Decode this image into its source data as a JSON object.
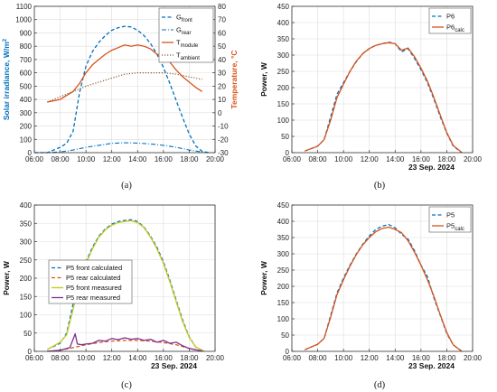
{
  "colors": {
    "blue": "#0072BD",
    "orange": "#D95319",
    "green": "#6b8e23",
    "yellow": "#c9c928",
    "purple": "#7E2F8E",
    "axis_orange": "#D95319"
  },
  "chart_data": [
    {
      "type": "line",
      "caption": "(a)",
      "ylabel": "Solar irradiance, W/m",
      "ylabel_sup": "2",
      "ylabel2": "Temperature, °C",
      "xlabel": "",
      "date_label": "",
      "xlim": [
        "06:00",
        "20:00"
      ],
      "ylim": [
        0,
        1100
      ],
      "ylim2": [
        -30,
        80
      ],
      "xticks": [
        "06:00",
        "08:00",
        "10:00",
        "12:00",
        "14:00",
        "16:00",
        "18:00",
        "20:00"
      ],
      "yticks": [
        0,
        100,
        200,
        300,
        400,
        500,
        600,
        700,
        800,
        900,
        1000,
        1100
      ],
      "yticks2": [
        -30,
        -20,
        -10,
        0,
        10,
        20,
        30,
        40,
        50,
        60,
        70,
        80
      ],
      "grid": true,
      "legend_position": "top-right",
      "series": [
        {
          "name": "G",
          "sub": "front",
          "axis": "left",
          "color": "#0072BD",
          "style": "dash",
          "width": 1.3,
          "x": [
            "06:00",
            "07:00",
            "08:00",
            "08:30",
            "09:00",
            "09:30",
            "10:00",
            "10:30",
            "11:00",
            "11:30",
            "12:00",
            "12:30",
            "13:00",
            "13:30",
            "14:00",
            "14:30",
            "15:00",
            "15:30",
            "16:00",
            "16:30",
            "17:00",
            "17:30",
            "18:00",
            "18:30",
            "19:00",
            "19:30"
          ],
          "y": [
            0,
            0,
            40,
            70,
            160,
            450,
            650,
            760,
            830,
            880,
            920,
            940,
            950,
            945,
            920,
            880,
            820,
            740,
            640,
            520,
            390,
            260,
            140,
            50,
            10,
            0
          ]
        },
        {
          "name": "G",
          "sub": "rear",
          "axis": "left",
          "color": "#0072BD",
          "style": "dashdot",
          "width": 1.1,
          "x": [
            "06:00",
            "07:00",
            "08:00",
            "09:00",
            "10:00",
            "11:00",
            "12:00",
            "13:00",
            "14:00",
            "15:00",
            "16:00",
            "17:00",
            "18:00",
            "19:00",
            "19:30"
          ],
          "y": [
            0,
            0,
            5,
            20,
            40,
            55,
            70,
            75,
            72,
            65,
            55,
            40,
            20,
            5,
            0
          ]
        },
        {
          "name": "T",
          "sub": "module",
          "axis": "right",
          "color": "#D95319",
          "style": "solid",
          "width": 1.3,
          "x": [
            "07:00",
            "07:30",
            "08:00",
            "08:30",
            "09:00",
            "09:30",
            "10:00",
            "10:30",
            "11:00",
            "11:30",
            "12:00",
            "12:30",
            "13:00",
            "13:30",
            "14:00",
            "14:30",
            "15:00",
            "15:30",
            "16:00",
            "16:30",
            "17:00",
            "17:30",
            "18:00",
            "18:30",
            "19:00"
          ],
          "y": [
            8,
            9,
            10,
            13,
            16,
            22,
            30,
            36,
            40,
            44,
            47,
            49,
            51,
            50,
            51,
            50,
            48,
            44,
            42,
            38,
            32,
            27,
            23,
            19,
            16
          ]
        },
        {
          "name": "T",
          "sub": "ambient",
          "axis": "right",
          "color": "#8B5A2B",
          "style": "dot",
          "width": 1.2,
          "x": [
            "07:00",
            "08:00",
            "09:00",
            "10:00",
            "11:00",
            "12:00",
            "13:00",
            "14:00",
            "15:00",
            "16:00",
            "17:00",
            "18:00",
            "19:00"
          ],
          "y": [
            8,
            12,
            16,
            20,
            23,
            26,
            29,
            30,
            30,
            30,
            29,
            27,
            25
          ]
        }
      ]
    },
    {
      "type": "line",
      "caption": "(b)",
      "ylabel": "Power, W",
      "date_label": "23 Sep. 2024",
      "xlim": [
        "06:00",
        "20:00"
      ],
      "ylim": [
        0,
        450
      ],
      "xticks": [
        "06:00",
        "08:00",
        "10:00",
        "12:00",
        "14:00",
        "16:00",
        "18:00",
        "20:00"
      ],
      "yticks": [
        0,
        50,
        100,
        150,
        200,
        250,
        300,
        350,
        400,
        450
      ],
      "grid": true,
      "legend_position": "top-right",
      "series": [
        {
          "name": "P6",
          "sub": "",
          "color": "#0072BD",
          "style": "dash",
          "width": 1.3,
          "x": [
            "07:00",
            "08:00",
            "08:30",
            "09:00",
            "09:30",
            "10:00",
            "10:30",
            "11:00",
            "11:30",
            "12:00",
            "12:30",
            "13:00",
            "13:30",
            "14:00",
            "14:30",
            "15:00",
            "15:30",
            "16:00",
            "16:30",
            "17:00",
            "17:30",
            "18:00",
            "18:30",
            "19:00",
            "19:10"
          ],
          "y": [
            5,
            20,
            40,
            110,
            180,
            215,
            250,
            280,
            305,
            320,
            330,
            335,
            340,
            335,
            310,
            320,
            290,
            255,
            215,
            165,
            110,
            60,
            20,
            5,
            0
          ]
        },
        {
          "name": "P6",
          "sub": "calc",
          "color": "#D95319",
          "style": "solid",
          "width": 1.3,
          "x": [
            "07:00",
            "08:00",
            "08:30",
            "09:00",
            "09:30",
            "10:00",
            "10:30",
            "11:00",
            "11:30",
            "12:00",
            "12:30",
            "13:00",
            "13:30",
            "14:00",
            "14:30",
            "15:00",
            "15:30",
            "16:00",
            "16:30",
            "17:00",
            "17:30",
            "18:00",
            "18:30",
            "19:00",
            "19:10"
          ],
          "y": [
            5,
            20,
            40,
            100,
            170,
            210,
            250,
            282,
            305,
            320,
            330,
            335,
            338,
            335,
            315,
            322,
            295,
            260,
            220,
            170,
            115,
            62,
            22,
            6,
            0
          ]
        }
      ]
    },
    {
      "type": "line",
      "caption": "(c)",
      "ylabel": "Power, W",
      "date_label": "23 Sep. 2024",
      "xlim": [
        "06:00",
        "20:00"
      ],
      "ylim": [
        0,
        400
      ],
      "xticks": [
        "06:00",
        "08:00",
        "10:00",
        "12:00",
        "14:00",
        "16:00",
        "18:00",
        "20:00"
      ],
      "yticks": [
        0,
        50,
        100,
        150,
        200,
        250,
        300,
        350,
        400
      ],
      "grid": true,
      "legend_position": "center-left",
      "series": [
        {
          "name": "P5 front calculated",
          "sub": "",
          "color": "#0072BD",
          "style": "dash",
          "width": 1.2,
          "x": [
            "07:00",
            "08:00",
            "08:30",
            "09:00",
            "09:30",
            "10:00",
            "10:30",
            "11:00",
            "11:30",
            "12:00",
            "12:30",
            "13:00",
            "13:30",
            "14:00",
            "14:30",
            "15:00",
            "15:30",
            "16:00",
            "16:30",
            "17:00",
            "17:30",
            "18:00",
            "18:30",
            "19:00",
            "19:10"
          ],
          "y": [
            5,
            22,
            50,
            130,
            200,
            245,
            285,
            315,
            335,
            348,
            355,
            358,
            360,
            355,
            340,
            315,
            285,
            245,
            195,
            140,
            85,
            40,
            12,
            3,
            0
          ]
        },
        {
          "name": "P5 rear calculated",
          "sub": "",
          "color": "#D95319",
          "style": "dash",
          "width": 1.2,
          "x": [
            "07:00",
            "08:00",
            "09:00",
            "10:00",
            "11:00",
            "12:00",
            "13:00",
            "14:00",
            "15:00",
            "16:00",
            "17:00",
            "18:00",
            "19:00"
          ],
          "y": [
            0,
            3,
            10,
            18,
            24,
            28,
            30,
            30,
            28,
            24,
            18,
            8,
            1
          ]
        },
        {
          "name": "P5 front measured",
          "sub": "",
          "color": "#c9c928",
          "style": "solid",
          "width": 1.4,
          "x": [
            "07:00",
            "08:00",
            "08:30",
            "09:00",
            "09:30",
            "10:00",
            "10:30",
            "11:00",
            "11:30",
            "12:00",
            "12:30",
            "13:00",
            "13:30",
            "14:00",
            "14:30",
            "15:00",
            "15:30",
            "16:00",
            "16:30",
            "17:00",
            "17:30",
            "18:00",
            "18:30",
            "19:00",
            "19:10"
          ],
          "y": [
            5,
            25,
            45,
            115,
            190,
            240,
            280,
            312,
            332,
            345,
            352,
            355,
            357,
            352,
            338,
            312,
            280,
            240,
            190,
            135,
            80,
            38,
            12,
            3,
            0
          ]
        },
        {
          "name": "P5 rear measured",
          "sub": "",
          "color": "#7E2F8E",
          "style": "solid",
          "width": 1.3,
          "x": [
            "07:00",
            "08:00",
            "08:45",
            "09:10",
            "09:20",
            "09:40",
            "10:00",
            "10:30",
            "11:00",
            "11:30",
            "12:00",
            "12:30",
            "13:00",
            "13:30",
            "14:00",
            "14:30",
            "15:00",
            "15:30",
            "16:00",
            "16:30",
            "17:00",
            "17:30",
            "18:00",
            "19:00"
          ],
          "y": [
            0,
            3,
            10,
            48,
            20,
            18,
            20,
            22,
            30,
            28,
            35,
            32,
            37,
            33,
            35,
            30,
            33,
            25,
            30,
            22,
            25,
            15,
            8,
            1
          ]
        }
      ]
    },
    {
      "type": "line",
      "caption": "(d)",
      "ylabel": "Power, W",
      "date_label": "23 Sep. 2024",
      "xlim": [
        "06:00",
        "20:00"
      ],
      "ylim": [
        0,
        450
      ],
      "xticks": [
        "06:00",
        "08:00",
        "10:00",
        "12:00",
        "14:00",
        "16:00",
        "18:00",
        "20:00"
      ],
      "yticks": [
        0,
        50,
        100,
        150,
        200,
        250,
        300,
        350,
        400,
        450
      ],
      "grid": true,
      "legend_position": "top-right",
      "series": [
        {
          "name": "P5",
          "sub": "",
          "color": "#0072BD",
          "style": "dash",
          "width": 1.3,
          "x": [
            "07:00",
            "08:00",
            "08:30",
            "09:00",
            "09:30",
            "10:00",
            "10:30",
            "11:00",
            "11:30",
            "12:00",
            "12:30",
            "13:00",
            "13:30",
            "14:00",
            "14:30",
            "15:00",
            "15:30",
            "16:00",
            "16:30",
            "17:00",
            "17:30",
            "18:00",
            "18:30",
            "19:00",
            "19:10"
          ],
          "y": [
            5,
            22,
            40,
            110,
            180,
            225,
            265,
            300,
            330,
            355,
            375,
            385,
            390,
            380,
            360,
            345,
            310,
            265,
            230,
            165,
            110,
            55,
            20,
            5,
            0
          ]
        },
        {
          "name": "P5",
          "sub": "calc",
          "color": "#D95319",
          "style": "solid",
          "width": 1.3,
          "x": [
            "07:00",
            "08:00",
            "08:30",
            "09:00",
            "09:30",
            "10:00",
            "10:30",
            "11:00",
            "11:30",
            "12:00",
            "12:30",
            "13:00",
            "13:30",
            "14:00",
            "14:30",
            "15:00",
            "15:30",
            "16:00",
            "16:30",
            "17:00",
            "17:30",
            "18:00",
            "18:30",
            "19:00",
            "19:10"
          ],
          "y": [
            5,
            22,
            40,
            105,
            175,
            220,
            262,
            298,
            328,
            350,
            368,
            378,
            382,
            375,
            365,
            340,
            305,
            265,
            220,
            170,
            112,
            58,
            20,
            5,
            0
          ]
        }
      ]
    }
  ]
}
